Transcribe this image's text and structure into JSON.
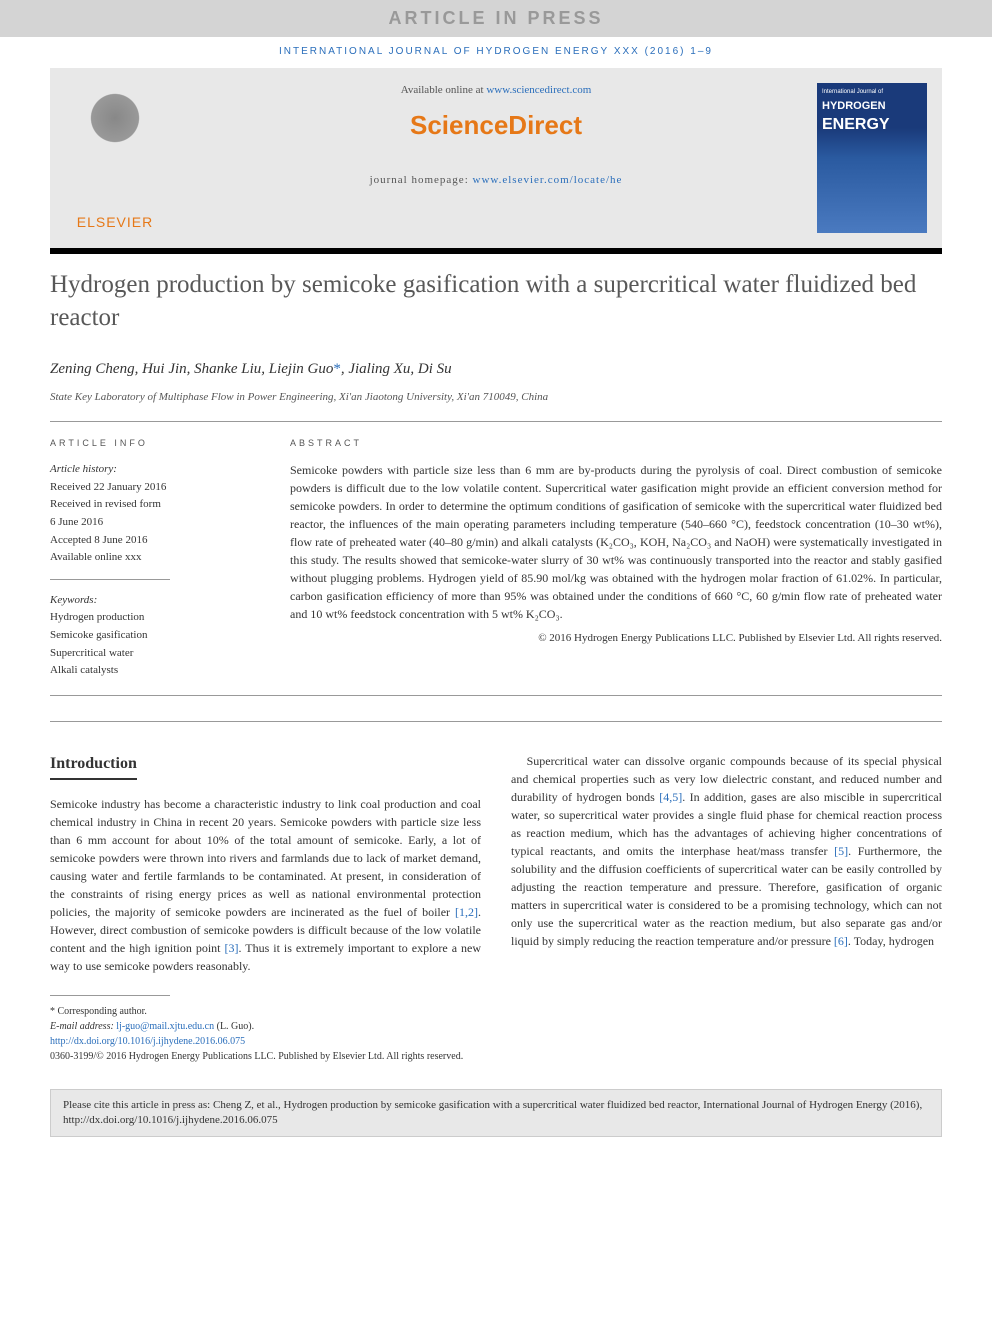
{
  "press_bar": "ARTICLE IN PRESS",
  "journal_header": "INTERNATIONAL JOURNAL OF HYDROGEN ENERGY XXX (2016) 1–9",
  "available_prefix": "Available online at ",
  "available_link": "www.sciencedirect.com",
  "sd_logo": "ScienceDirect",
  "homepage_prefix": "journal homepage: ",
  "homepage_link": "www.elsevier.com/locate/he",
  "elsevier_text": "ELSEVIER",
  "cover": {
    "top": "International Journal of",
    "line1": "HYDROGEN",
    "line2": "ENERGY"
  },
  "title": "Hydrogen production by semicoke gasification with a supercritical water fluidized bed reactor",
  "authors": "Zening Cheng, Hui Jin, Shanke Liu, Liejin Guo",
  "authors_suffix": ", Jialing Xu, Di Su",
  "corr_mark": "*",
  "affiliation": "State Key Laboratory of Multiphase Flow in Power Engineering, Xi'an Jiaotong University, Xi'an 710049, China",
  "article_info_label": "ARTICLE INFO",
  "abstract_label": "ABSTRACT",
  "history_head": "Article history:",
  "history": {
    "received": "Received 22 January 2016",
    "revised1": "Received in revised form",
    "revised2": "6 June 2016",
    "accepted": "Accepted 8 June 2016",
    "online": "Available online xxx"
  },
  "keywords_head": "Keywords:",
  "keywords": [
    "Hydrogen production",
    "Semicoke gasification",
    "Supercritical water",
    "Alkali catalysts"
  ],
  "abstract": "Semicoke powders with particle size less than 6 mm are by-products during the pyrolysis of coal. Direct combustion of semicoke powders is difficult due to the low volatile content. Supercritical water gasification might provide an efficient conversion method for semicoke powders. In order to determine the optimum conditions of gasification of semicoke with the supercritical water fluidized bed reactor, the influences of the main operating parameters including temperature (540–660 °C), feedstock concentration (10–30 wt%), flow rate of preheated water (40–80 g/min) and alkali catalysts (K₂CO₃, KOH, Na₂CO₃ and NaOH) were systematically investigated in this study. The results showed that semicoke-water slurry of 30 wt% was continuously transported into the reactor and stably gasified without plugging problems. Hydrogen yield of 85.90 mol/kg was obtained with the hydrogen molar fraction of 61.02%. In particular, carbon gasification efficiency of more than 95% was obtained under the conditions of 660 °C, 60 g/min flow rate of preheated water and 10 wt% feedstock concentration with 5 wt% K₂CO₃.",
  "abs_copyright": "© 2016 Hydrogen Energy Publications LLC. Published by Elsevier Ltd. All rights reserved.",
  "intro_heading": "Introduction",
  "intro_p1a": "Semicoke industry has become a characteristic industry to link coal production and coal chemical industry in China in recent 20 years. Semicoke powders with particle size less than 6 mm account for about 10% of the total amount of semicoke. Early, a lot of semicoke powders were thrown into rivers and farmlands due to lack of market demand, causing water and fertile farmlands to be contaminated. At present, in consideration of the constraints of rising energy prices as well as national environmental protection policies, the majority of semicoke powders are incinerated as the fuel of boiler ",
  "ref12": "[1,2]",
  "intro_p1b": ". However, direct combustion of semicoke powders is difficult because of the low volatile content and the high ignition point ",
  "ref3": "[3]",
  "intro_p1c": ". Thus it is extremely important to explore a new way to use semicoke powders reasonably.",
  "intro_p2a": "Supercritical water can dissolve organic compounds because of its special physical and chemical properties such as very low dielectric constant, and reduced number and durability of hydrogen bonds ",
  "ref45": "[4,5]",
  "intro_p2b": ". In addition, gases are also miscible in supercritical water, so supercritical water provides a single fluid phase for chemical reaction process as reaction medium, which has the advantages of achieving higher concentrations of typical reactants, and omits the interphase heat/mass transfer ",
  "ref5": "[5]",
  "intro_p2c": ". Furthermore, the solubility and the diffusion coefficients of supercritical water can be easily controlled by adjusting the reaction temperature and pressure. Therefore, gasification of organic matters in supercritical water is considered to be a promising technology, which can not only use the supercritical water as the reaction medium, but also separate gas and/or liquid by simply reducing the reaction temperature and/or pressure ",
  "ref6": "[6]",
  "intro_p2d": ". Today, hydrogen",
  "footer": {
    "corr": "* Corresponding author.",
    "email_label": "E-mail address: ",
    "email": "lj-guo@mail.xjtu.edu.cn",
    "email_suffix": " (L. Guo).",
    "doi": "http://dx.doi.org/10.1016/j.ijhydene.2016.06.075",
    "issn_line": "0360-3199/© 2016 Hydrogen Energy Publications LLC. Published by Elsevier Ltd. All rights reserved."
  },
  "cite_box": "Please cite this article in press as: Cheng Z, et al., Hydrogen production by semicoke gasification with a supercritical water fluidized bed reactor, International Journal of Hydrogen Energy (2016), http://dx.doi.org/10.1016/j.ijhydene.2016.06.075",
  "colors": {
    "link": "#2a6ebb",
    "orange": "#e67817",
    "gray_bg": "#e8e8e8"
  }
}
